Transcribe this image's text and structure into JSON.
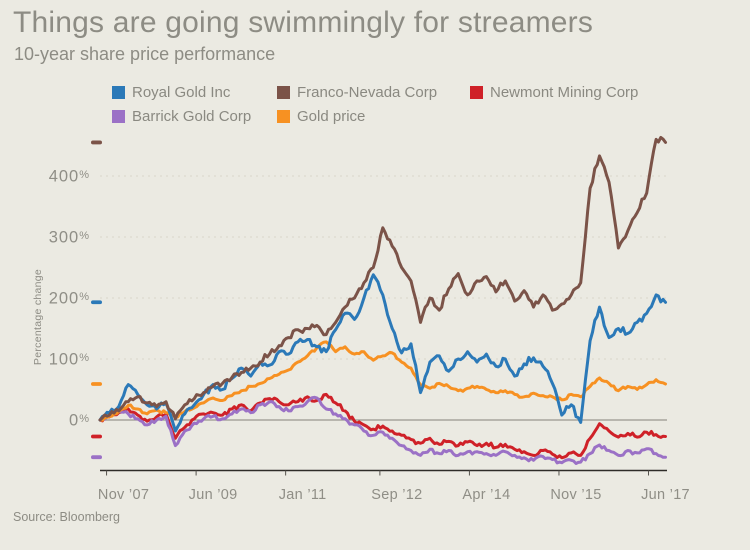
{
  "page": {
    "background": "#ebeae2"
  },
  "header": {
    "title": "Things are going swimmingly for streamers",
    "subtitle": "10-year share price performance"
  },
  "legend": {
    "items": [
      {
        "label": "Royal Gold Inc",
        "color": "#2b79b8"
      },
      {
        "label": "Franco-Nevada Corp",
        "color": "#7b5348"
      },
      {
        "label": "Newmont Mining Corp",
        "color": "#cf2128"
      },
      {
        "label": "Barrick Gold Corp",
        "color": "#9b71c6"
      },
      {
        "label": "Gold price",
        "color": "#f79122"
      }
    ]
  },
  "source_note": "Source: Bloomberg",
  "chart_data": {
    "type": "line",
    "title": "Things are going swimmingly for streamers",
    "subtitle": "10-year share price performance",
    "ylabel": "Percentage change",
    "x_unit": "months since Jun 2007",
    "x_start": 0,
    "x_step": 2,
    "x_end": 120,
    "ylim": [
      -80,
      480
    ],
    "grid": "horizontal dashed gridlines at 100-400, solid line at 0",
    "legend_position": "top",
    "y_ticks": [
      {
        "value": 0,
        "label": "0%"
      },
      {
        "value": 100,
        "label": "100%"
      },
      {
        "value": 200,
        "label": "200%"
      },
      {
        "value": 300,
        "label": "300%"
      },
      {
        "value": 400,
        "label": "400%"
      }
    ],
    "x_ticks": [
      {
        "t": 5,
        "label": "Nov ’07"
      },
      {
        "t": 24,
        "label": "Jun ’09"
      },
      {
        "t": 43,
        "label": "Jan ’11"
      },
      {
        "t": 63,
        "label": "Sep ’12"
      },
      {
        "t": 82,
        "label": "Apr ’14"
      },
      {
        "t": 101,
        "label": "Nov ’15"
      },
      {
        "t": 120,
        "label": "Jun ’17"
      }
    ],
    "series": [
      {
        "name": "Royal Gold Inc",
        "color": "#2b79b8",
        "z": 4,
        "wiggle": 6,
        "values": [
          0,
          12,
          22,
          58,
          42,
          25,
          18,
          28,
          -18,
          10,
          25,
          42,
          58,
          50,
          68,
          85,
          72,
          95,
          90,
          112,
          108,
          128,
          132,
          120,
          112,
          148,
          175,
          165,
          200,
          238,
          205,
          150,
          110,
          125,
          45,
          95,
          105,
          80,
          100,
          112,
          95,
          108,
          88,
          100,
          72,
          92,
          102,
          88,
          60,
          8,
          25,
          -4,
          130,
          185,
          135,
          150,
          142,
          160,
          175,
          205,
          193
        ]
      },
      {
        "name": "Franco-Nevada Corp",
        "color": "#7b5348",
        "z": 5,
        "wiggle": 6,
        "values": [
          0,
          8,
          15,
          30,
          38,
          28,
          22,
          30,
          2,
          25,
          35,
          45,
          55,
          60,
          70,
          78,
          85,
          95,
          108,
          122,
          135,
          148,
          150,
          155,
          140,
          160,
          185,
          200,
          225,
          250,
          315,
          285,
          250,
          228,
          160,
          200,
          180,
          215,
          240,
          205,
          228,
          235,
          210,
          228,
          195,
          212,
          185,
          205,
          180,
          190,
          205,
          225,
          380,
          433,
          390,
          282,
          310,
          340,
          372,
          460,
          455
        ]
      },
      {
        "name": "Newmont Mining Corp",
        "color": "#cf2128",
        "z": 1,
        "wiggle": 4,
        "values": [
          0,
          5,
          12,
          18,
          8,
          -2,
          5,
          10,
          -30,
          -12,
          2,
          10,
          12,
          8,
          18,
          25,
          15,
          28,
          35,
          30,
          25,
          30,
          38,
          32,
          42,
          28,
          15,
          -2,
          -8,
          -15,
          -10,
          -18,
          -25,
          -32,
          -38,
          -30,
          -40,
          -35,
          -42,
          -36,
          -42,
          -38,
          -45,
          -40,
          -48,
          -52,
          -58,
          -50,
          -56,
          -62,
          -54,
          -58,
          -30,
          -6,
          -18,
          -28,
          -22,
          -28,
          -20,
          -24,
          -27
        ]
      },
      {
        "name": "Barrick Gold Corp",
        "color": "#9b71c6",
        "z": 2,
        "wiggle": 4,
        "values": [
          0,
          6,
          14,
          10,
          2,
          -8,
          0,
          6,
          -42,
          -18,
          -5,
          2,
          6,
          2,
          10,
          18,
          12,
          25,
          30,
          22,
          15,
          22,
          30,
          36,
          18,
          10,
          2,
          -8,
          -18,
          -25,
          -20,
          -30,
          -42,
          -50,
          -58,
          -48,
          -55,
          -50,
          -58,
          -52,
          -52,
          -55,
          -58,
          -52,
          -58,
          -62,
          -66,
          -60,
          -65,
          -70,
          -66,
          -69,
          -55,
          -41,
          -50,
          -58,
          -50,
          -54,
          -47,
          -55,
          -61
        ]
      },
      {
        "name": "Gold price",
        "color": "#f79122",
        "z": 3,
        "wiggle": 3,
        "values": [
          0,
          6,
          14,
          24,
          18,
          10,
          16,
          12,
          4,
          14,
          20,
          28,
          36,
          32,
          40,
          48,
          55,
          60,
          68,
          75,
          82,
          95,
          105,
          118,
          128,
          112,
          120,
          108,
          112,
          98,
          105,
          110,
          95,
          85,
          58,
          52,
          60,
          55,
          48,
          52,
          55,
          50,
          45,
          48,
          42,
          38,
          44,
          40,
          38,
          33,
          42,
          38,
          55,
          69,
          60,
          48,
          55,
          50,
          58,
          66,
          59
        ]
      }
    ]
  }
}
